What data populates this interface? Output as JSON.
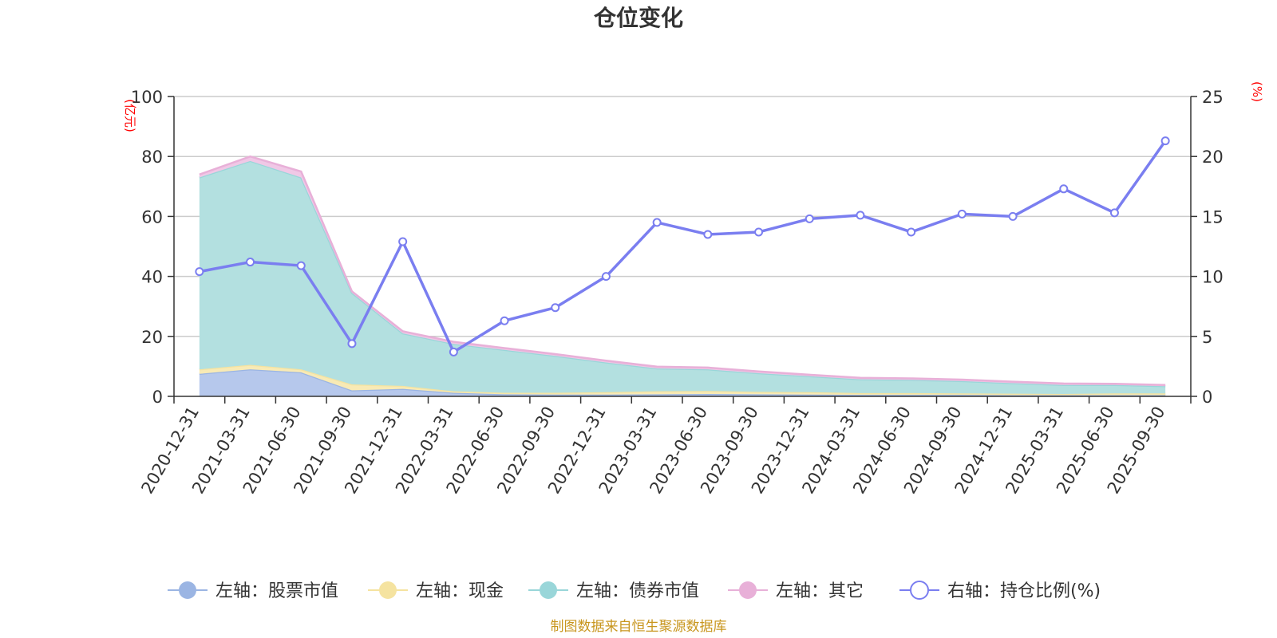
{
  "chart_data": {
    "type": "area",
    "title": "仓位变化",
    "left_unit": "(亿元)",
    "right_unit": "(%)",
    "categories": [
      "2020-12-31",
      "2021-03-31",
      "2021-06-30",
      "2021-09-30",
      "2021-12-31",
      "2022-03-31",
      "2022-06-30",
      "2022-09-30",
      "2022-12-31",
      "2023-03-31",
      "2023-06-30",
      "2023-09-30",
      "2023-12-31",
      "2024-03-31",
      "2024-06-30",
      "2024-09-30",
      "2024-12-31",
      "2025-03-31",
      "2025-06-30",
      "2025-09-30"
    ],
    "left_axis": {
      "min": 0,
      "max": 100,
      "ticks": [
        0,
        20,
        40,
        60,
        80,
        100
      ]
    },
    "right_axis": {
      "min": 0,
      "max": 25,
      "ticks": [
        0,
        5,
        10,
        15,
        20,
        25
      ]
    },
    "grid": true,
    "legend_position": "bottom",
    "series": [
      {
        "name": "左轴：股票市值",
        "axis": "left",
        "stacked": true,
        "color": "#9bb5e3",
        "fill": "#b6c8ec",
        "values": [
          7.5,
          9,
          8,
          2,
          2.5,
          1.2,
          0.7,
          0.6,
          0.6,
          0.7,
          0.8,
          0.7,
          0.6,
          0.5,
          0.5,
          0.5,
          0.4,
          0.4,
          0.4,
          0.4
        ]
      },
      {
        "name": "左轴：现金",
        "axis": "left",
        "stacked": true,
        "color": "#f5e3a0",
        "fill": "#f8eab5",
        "values": [
          1.5,
          1.5,
          1,
          2,
          1,
          0.5,
          0.5,
          0.6,
          0.8,
          1,
          1,
          0.8,
          0.8,
          0.6,
          0.6,
          0.5,
          0.5,
          0.4,
          0.6,
          0.6
        ]
      },
      {
        "name": "左轴：债券市值",
        "axis": "left",
        "stacked": true,
        "color": "#99d6d9",
        "fill": "#b3e0e0",
        "values": [
          64,
          68,
          64,
          30.5,
          17.5,
          15.8,
          14.3,
          12.3,
          9.9,
          7.6,
          7.2,
          6.2,
          5.3,
          4.6,
          4.4,
          4.1,
          3.5,
          3,
          2.8,
          2.4
        ]
      },
      {
        "name": "左轴：其它",
        "axis": "left",
        "stacked": true,
        "color": "#e8b0d8",
        "fill": "#f0c8e6",
        "values": [
          1,
          1.5,
          2,
          0.5,
          0.7,
          0.7,
          0.6,
          0.6,
          0.6,
          0.6,
          0.6,
          0.6,
          0.5,
          0.5,
          0.5,
          0.5,
          0.5,
          0.5,
          0.4,
          0.4
        ]
      },
      {
        "name": "右轴：持仓比例(%)",
        "axis": "right",
        "stacked": false,
        "color": "#7a7ef0",
        "values": [
          10.4,
          11.2,
          10.9,
          4.4,
          12.9,
          3.7,
          6.3,
          7.4,
          10,
          14.5,
          13.5,
          13.7,
          14.8,
          15.1,
          13.7,
          15.2,
          15,
          17.3,
          15.3,
          21.3
        ]
      }
    ],
    "source": "制图数据来自恒生聚源数据库"
  }
}
